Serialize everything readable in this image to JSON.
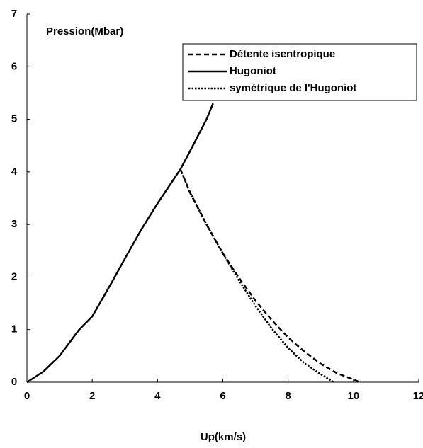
{
  "chart_data": {
    "type": "line",
    "ylabel": "Pression(Mbar)",
    "xlabel": "Up(km/s)",
    "xlim": [
      0,
      12
    ],
    "xticks": [
      0,
      2,
      4,
      6,
      8,
      10,
      12
    ],
    "ylim": [
      0,
      7
    ],
    "yticks": [
      0,
      1,
      2,
      3,
      4,
      5,
      6,
      7
    ],
    "legend": "upper right",
    "series": [
      {
        "name": "Détente isentropique",
        "color": "#000000",
        "style": "dashed",
        "x": [
          4.7,
          5,
          5.5,
          6,
          6.5,
          7,
          7.5,
          8,
          8.5,
          9,
          9.5,
          10,
          10.2
        ],
        "values": [
          4.05,
          3.6,
          3.0,
          2.45,
          1.98,
          1.55,
          1.18,
          0.85,
          0.58,
          0.35,
          0.17,
          0.05,
          0
        ]
      },
      {
        "name": "Hugoniot",
        "color": "#000000",
        "style": "solid",
        "x": [
          0,
          0.5,
          1,
          1.6,
          2,
          2.6,
          3,
          3.5,
          4,
          4.7,
          5,
          5.5,
          5.7
        ],
        "values": [
          0,
          0.2,
          0.5,
          1,
          1.25,
          1.9,
          2.35,
          2.9,
          3.4,
          4.05,
          4.4,
          5.0,
          5.3
        ]
      },
      {
        "name": "symétrique de l'Hugoniot",
        "color": "#000000",
        "style": "dotted",
        "x": [
          4.7,
          5,
          5.5,
          6,
          6.5,
          7,
          7.5,
          8,
          8.5,
          9,
          9.4
        ],
        "values": [
          4.05,
          3.6,
          3.0,
          2.45,
          1.93,
          1.45,
          1.02,
          0.65,
          0.36,
          0.15,
          0
        ]
      }
    ]
  }
}
